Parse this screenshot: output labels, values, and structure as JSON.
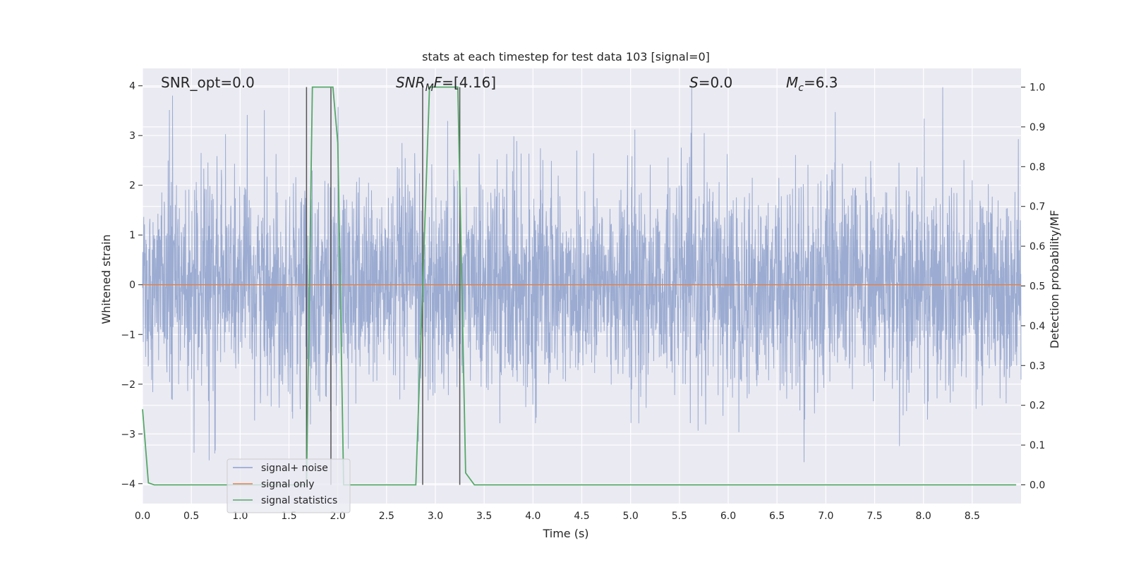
{
  "chart_data": {
    "type": "line",
    "title": "stats at each timestep for test data 103 [signal=0]",
    "xlabel": "Time (s)",
    "ylabel_left": "Whitened strain",
    "ylabel_right": "Detection probability/MF",
    "xlim": [
      0.0,
      9.0
    ],
    "ylim_left": [
      -4.4,
      4.35
    ],
    "ylim_right": [
      -0.047,
      1.047
    ],
    "x_ticks": [
      "0.0",
      "0.5",
      "1.0",
      "1.5",
      "2.0",
      "2.5",
      "3.0",
      "3.5",
      "4.0",
      "4.5",
      "5.0",
      "5.5",
      "6.0",
      "6.5",
      "7.0",
      "7.5",
      "8.0",
      "8.5"
    ],
    "y_ticks_left": [
      "4",
      "3",
      "2",
      "1",
      "0",
      "−1",
      "−2",
      "−3",
      "−4"
    ],
    "y_ticks_right": [
      "1.0",
      "0.9",
      "0.8",
      "0.7",
      "0.6",
      "0.5",
      "0.4",
      "0.3",
      "0.2",
      "0.1",
      "0.0"
    ],
    "grid": true,
    "legend_position": "lower-left",
    "annotations": {
      "snr_opt": "SNR_opt=0.0",
      "snr_mf_sym": "SNR",
      "snr_mf_sub": "M",
      "snr_mf_sym2": "F",
      "snr_mf_val": "=[4.16]",
      "s_sym": "S",
      "s_val": "=0.0",
      "mc_sym": "M",
      "mc_sub": "c",
      "mc_val": "=6.3"
    },
    "series": [
      {
        "name": "signal+ noise",
        "color": "#8da0cb",
        "description": "whitened strain, noise only, amplitude mostly within ±2 with peaks up to ±4"
      },
      {
        "name": "signal only",
        "color": "#dd8452",
        "values_constant": 0.0
      },
      {
        "name": "signal statistics",
        "color": "#55a868",
        "x": [
          0.0,
          0.06,
          0.12,
          1.5,
          1.68,
          1.74,
          1.95,
          2.0,
          2.06,
          2.5,
          2.8,
          2.87,
          2.94,
          3.0,
          3.23,
          3.31,
          3.4,
          4.0,
          5.0,
          6.0,
          7.0,
          8.0,
          8.95
        ],
        "y": [
          0.19,
          0.005,
          0.0,
          0.0,
          0.0,
          1.0,
          1.0,
          0.86,
          0.0,
          0.0,
          0.0,
          0.5,
          1.0,
          1.0,
          1.0,
          0.03,
          0.0,
          0.0,
          0.0,
          0.0,
          0.0,
          0.0,
          0.0
        ]
      }
    ],
    "vertical_lines_x": [
      1.68,
      1.93,
      2.87,
      3.25
    ],
    "colors": {
      "background": "#eaeaf2",
      "grid": "#ffffff",
      "vline": "#555555"
    }
  }
}
